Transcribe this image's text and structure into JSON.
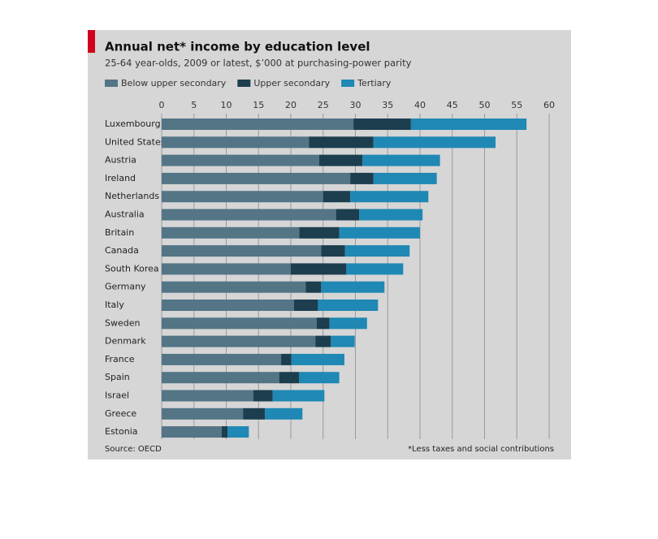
{
  "chart_data": {
    "type": "bar",
    "orientation": "horizontal",
    "stacked": true,
    "title": "Annual net* income by education level",
    "subtitle": "25-64 year-olds, 2009 or latest, $’000 at purchasing-power parity",
    "source": "Source: OECD",
    "footnote": "*Less taxes and social contributions",
    "categories": [
      "Luxembourg",
      "United States",
      "Austria",
      "Ireland",
      "Netherlands",
      "Australia",
      "Britain",
      "Canada",
      "South Korea",
      "Germany",
      "Italy",
      "Sweden",
      "Denmark",
      "France",
      "Spain",
      "Israel",
      "Greece",
      "Estonia"
    ],
    "series": [
      {
        "name": "Below upper secondary",
        "color": "#537586",
        "values": [
          29.7,
          22.8,
          24.4,
          29.2,
          25.0,
          27.0,
          21.3,
          24.7,
          20.0,
          22.3,
          20.5,
          24.0,
          23.8,
          18.5,
          18.2,
          14.2,
          12.6,
          9.3
        ]
      },
      {
        "name": "Upper secondary",
        "color": "#1c3e4f",
        "values": [
          8.9,
          10.0,
          6.7,
          3.6,
          4.2,
          3.6,
          6.2,
          3.7,
          8.6,
          2.4,
          3.7,
          2.0,
          2.4,
          1.6,
          3.1,
          3.0,
          3.4,
          0.9
        ]
      },
      {
        "name": "Tertiary",
        "color": "#1f88b4",
        "values": [
          17.9,
          18.9,
          12.0,
          9.8,
          12.1,
          9.8,
          12.5,
          10.0,
          8.8,
          9.8,
          9.3,
          5.8,
          3.7,
          8.2,
          6.2,
          8.0,
          5.8,
          3.3
        ]
      }
    ],
    "xlim": [
      0,
      60
    ],
    "xticks": [
      0,
      5,
      10,
      15,
      20,
      25,
      30,
      35,
      40,
      45,
      50,
      55,
      60
    ],
    "grid": true
  }
}
